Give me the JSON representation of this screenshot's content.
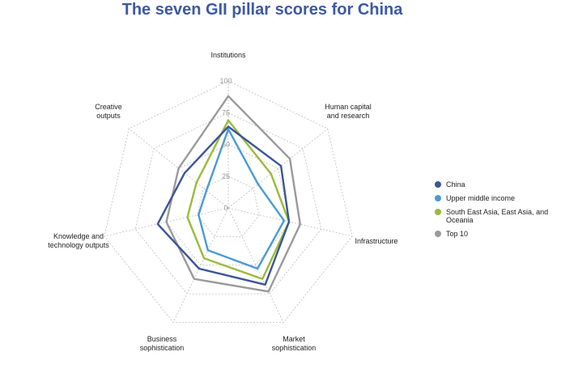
{
  "title": "The seven GII pillar scores for China",
  "chart_data": {
    "type": "radar",
    "title": "The seven GII pillar scores for China",
    "axes": [
      [
        "Institutions"
      ],
      [
        "Human capital",
        "and research"
      ],
      [
        "Infrastructure"
      ],
      [
        "Market",
        "sophistication"
      ],
      [
        "Business",
        "sophistication"
      ],
      [
        "Knowledge and",
        "technology outputs"
      ],
      [
        "Creative",
        "outputs"
      ]
    ],
    "rlim": [
      0,
      100
    ],
    "ticks": [
      0,
      25,
      50,
      75,
      100
    ],
    "tick_labels": [
      "0",
      "25",
      "50",
      "75",
      "100"
    ],
    "grid": true,
    "legend_position": "right",
    "series": [
      {
        "name": "China",
        "color": "#3b5597",
        "values": [
          64,
          53,
          49,
          67,
          53,
          57,
          44
        ]
      },
      {
        "name": "Upper middle income",
        "color": "#4a9ad4",
        "values": [
          62,
          30,
          45,
          53,
          37,
          24,
          22
        ]
      },
      {
        "name": "South East Asia, East Asia, and Oceania",
        "color": "#99bb3b",
        "values": [
          69,
          43,
          49,
          62,
          44,
          33,
          32
        ]
      },
      {
        "name": "Top 10",
        "color": "#9a9a9a",
        "values": [
          88,
          62,
          58,
          73,
          62,
          50,
          50
        ]
      }
    ]
  }
}
